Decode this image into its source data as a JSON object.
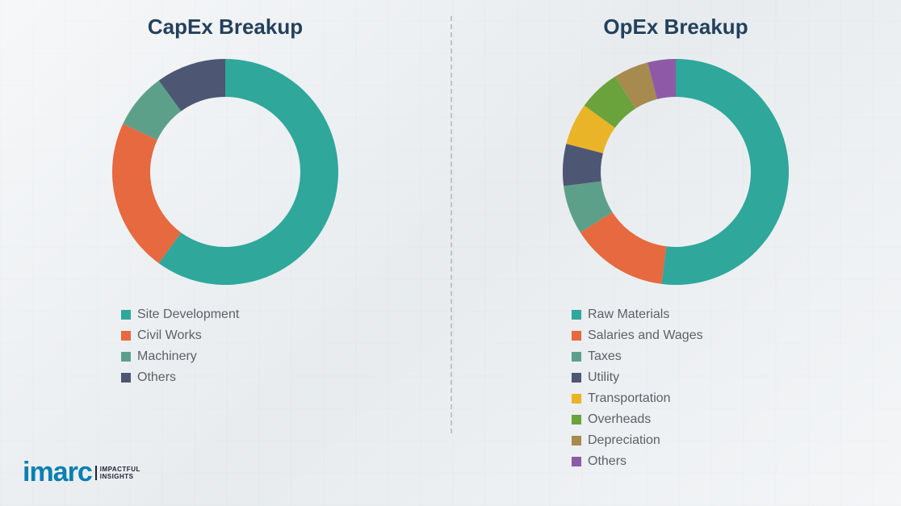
{
  "background_color": "#e8ecef",
  "divider_color": "#9aa0a6",
  "title_color": "#24415c",
  "title_fontsize": 26,
  "legend_fontsize": 16,
  "legend_text_color": "#5b6168",
  "donut": {
    "outer_radius": 140,
    "inner_radius": 93,
    "gap_deg": 0
  },
  "capex": {
    "title": "CapEx Breakup",
    "type": "donut",
    "slices": [
      {
        "label": "Site Development",
        "value": 60,
        "color": "#2fa79b"
      },
      {
        "label": "Civil Works",
        "value": 22,
        "color": "#e6693f"
      },
      {
        "label": "Machinery",
        "value": 8,
        "color": "#5ca08a"
      },
      {
        "label": "Others",
        "value": 10,
        "color": "#4d5673"
      }
    ]
  },
  "opex": {
    "title": "OpEx Breakup",
    "type": "donut",
    "slices": [
      {
        "label": "Raw Materials",
        "value": 52,
        "color": "#2fa79b"
      },
      {
        "label": "Salaries and Wages",
        "value": 14,
        "color": "#e6693f"
      },
      {
        "label": "Taxes",
        "value": 7,
        "color": "#5ca08a"
      },
      {
        "label": "Utility",
        "value": 6,
        "color": "#4d5673"
      },
      {
        "label": "Transportation",
        "value": 6,
        "color": "#e9b428"
      },
      {
        "label": "Overheads",
        "value": 6,
        "color": "#6aa33b"
      },
      {
        "label": "Depreciation",
        "value": 5,
        "color": "#a68a4e"
      },
      {
        "label": "Others",
        "value": 4,
        "color": "#8e5aa8"
      }
    ]
  },
  "logo": {
    "mark": "imarc",
    "tag_line1": "IMPACTFUL",
    "tag_line2": "INSIGHTS",
    "color": "#0a7fb0"
  }
}
